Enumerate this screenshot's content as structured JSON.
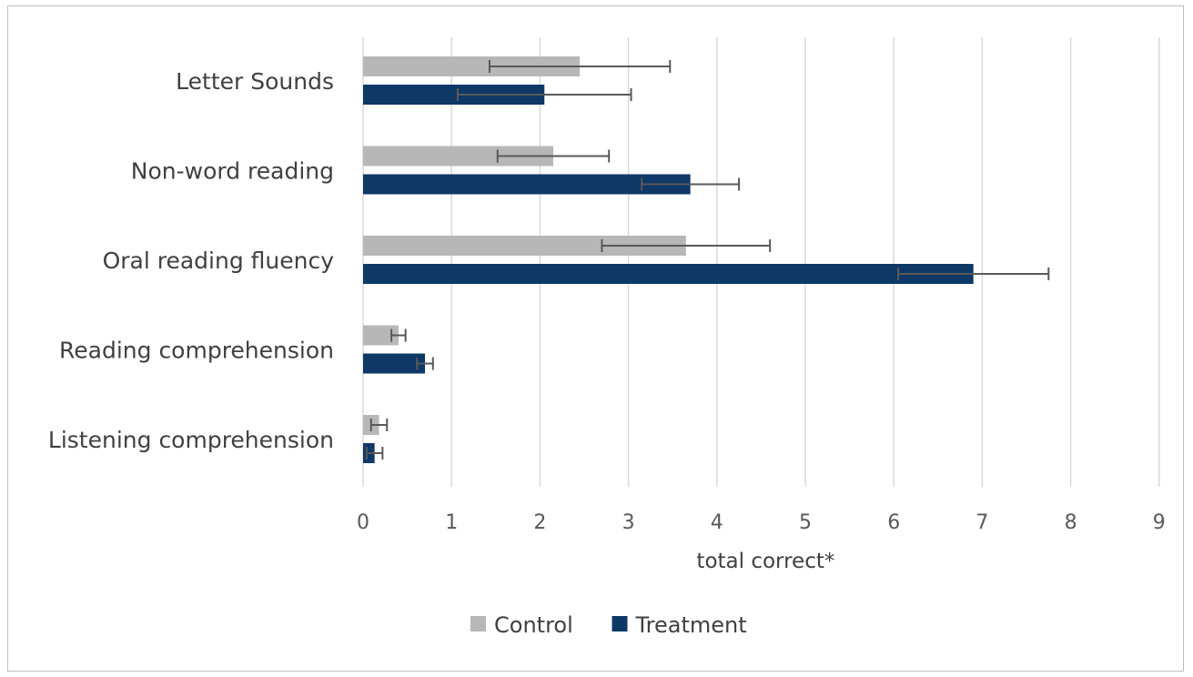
{
  "chart_data": {
    "type": "bar",
    "orientation": "horizontal",
    "categories": [
      "Letter Sounds",
      "Non-word reading",
      "Oral reading fluency",
      "Reading comprehension",
      "Listening comprehension"
    ],
    "series": [
      {
        "name": "Control",
        "color": "#b7b7b7",
        "values": [
          2.45,
          2.15,
          3.65,
          0.4,
          0.18
        ],
        "error": [
          1.02,
          0.63,
          0.95,
          0.08,
          0.09
        ]
      },
      {
        "name": "Treatment",
        "color": "#0e3866",
        "values": [
          2.05,
          3.7,
          6.9,
          0.7,
          0.13
        ],
        "error": [
          0.98,
          0.55,
          0.85,
          0.09,
          0.09
        ]
      }
    ],
    "xlabel": "total correct*",
    "xlim": [
      0,
      9
    ],
    "xticks": [
      "0",
      "1",
      "2",
      "3",
      "4",
      "5",
      "6",
      "7",
      "8",
      "9"
    ],
    "grid": "vertical",
    "legend": "bottom"
  }
}
